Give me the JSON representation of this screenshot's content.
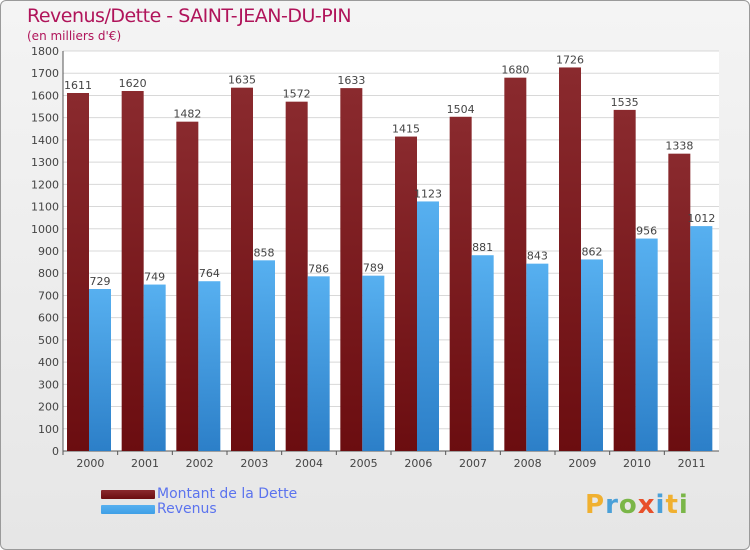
{
  "chart_data": {
    "type": "bar",
    "title": "Revenus/Dette - SAINT-JEAN-DU-PIN",
    "subtitle": "(en milliers d'€)",
    "categories": [
      "2000",
      "2001",
      "2002",
      "2003",
      "2004",
      "2005",
      "2006",
      "2007",
      "2008",
      "2009",
      "2010",
      "2011"
    ],
    "series": [
      {
        "name": "Montant de la Dette",
        "color": "#6b0d10",
        "values": [
          1611,
          1620,
          1482,
          1635,
          1572,
          1633,
          1415,
          1504,
          1680,
          1726,
          1535,
          1338
        ]
      },
      {
        "name": "Revenus",
        "color": "#3f9fe6",
        "values": [
          729,
          749,
          764,
          858,
          786,
          789,
          1123,
          881,
          843,
          862,
          956,
          1012
        ]
      }
    ],
    "ylim": [
      0,
      1800
    ],
    "ytick_step": 100,
    "grid": true,
    "legend_position": "bottom-left"
  },
  "logo": {
    "letters": [
      "P",
      "r",
      "o",
      "x",
      "i",
      "t",
      "i"
    ]
  }
}
